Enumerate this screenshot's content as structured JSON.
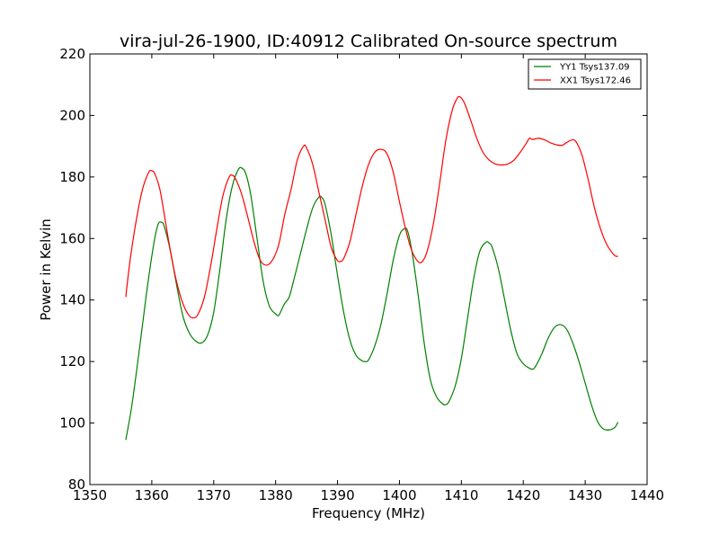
{
  "chart_data": {
    "type": "line",
    "title": "vira-jul-26-1900, ID:40912 Calibrated On-source spectrum",
    "xlabel": "Frequency (MHz)",
    "ylabel": "Power in Kelvin",
    "xlim": [
      1350,
      1440
    ],
    "ylim": [
      80,
      220
    ],
    "xticks": [
      1350,
      1360,
      1370,
      1380,
      1390,
      1400,
      1410,
      1420,
      1430,
      1440
    ],
    "yticks": [
      80,
      100,
      120,
      140,
      160,
      180,
      200,
      220
    ],
    "grid": false,
    "legend_position": "top-right",
    "series": [
      {
        "name": "YY1 Tsys137.09",
        "color": "#008000",
        "points": [
          [
            1355.8,
            94.5
          ],
          [
            1356.8,
            106
          ],
          [
            1358,
            124
          ],
          [
            1359.2,
            143
          ],
          [
            1360.3,
            158
          ],
          [
            1361,
            164.5
          ],
          [
            1361.5,
            165.3
          ],
          [
            1362,
            164
          ],
          [
            1363,
            156
          ],
          [
            1364,
            145
          ],
          [
            1365,
            135
          ],
          [
            1366,
            129.5
          ],
          [
            1367,
            126.8
          ],
          [
            1368,
            126
          ],
          [
            1369,
            128.5
          ],
          [
            1370,
            136
          ],
          [
            1371,
            150
          ],
          [
            1372,
            166
          ],
          [
            1373,
            177
          ],
          [
            1374,
            182.5
          ],
          [
            1374.6,
            182.8
          ],
          [
            1375.2,
            181
          ],
          [
            1376,
            174
          ],
          [
            1377,
            160
          ],
          [
            1378,
            146
          ],
          [
            1379,
            138
          ],
          [
            1380,
            135.5
          ],
          [
            1380.5,
            135
          ],
          [
            1381,
            137
          ],
          [
            1381.5,
            139
          ],
          [
            1382.2,
            141
          ],
          [
            1383,
            147
          ],
          [
            1384,
            155
          ],
          [
            1385,
            163
          ],
          [
            1386,
            170
          ],
          [
            1387,
            173.5
          ],
          [
            1387.5,
            173.2
          ],
          [
            1388,
            171
          ],
          [
            1389,
            161
          ],
          [
            1390,
            148
          ],
          [
            1391,
            136
          ],
          [
            1392,
            127
          ],
          [
            1393,
            122
          ],
          [
            1394,
            120.2
          ],
          [
            1394.5,
            120
          ],
          [
            1395,
            120.5
          ],
          [
            1396,
            125
          ],
          [
            1397,
            132
          ],
          [
            1398,
            142
          ],
          [
            1399,
            153
          ],
          [
            1400,
            161
          ],
          [
            1400.8,
            163.2
          ],
          [
            1401.3,
            162.5
          ],
          [
            1402,
            156
          ],
          [
            1403,
            142
          ],
          [
            1404,
            126
          ],
          [
            1405,
            114
          ],
          [
            1406,
            108.5
          ],
          [
            1407,
            106.2
          ],
          [
            1407.5,
            106
          ],
          [
            1408,
            107
          ],
          [
            1409,
            112
          ],
          [
            1410,
            121
          ],
          [
            1411,
            134
          ],
          [
            1412,
            147
          ],
          [
            1413,
            156
          ],
          [
            1414,
            158.8
          ],
          [
            1414.5,
            158.5
          ],
          [
            1415,
            157
          ],
          [
            1416,
            150
          ],
          [
            1417,
            140
          ],
          [
            1418,
            130
          ],
          [
            1419,
            122.5
          ],
          [
            1420,
            119.3
          ],
          [
            1421,
            117.8
          ],
          [
            1421.5,
            117.5
          ],
          [
            1422,
            118.5
          ],
          [
            1423,
            122.5
          ],
          [
            1424,
            127.5
          ],
          [
            1425,
            131
          ],
          [
            1426,
            132
          ],
          [
            1427,
            130.5
          ],
          [
            1428,
            126
          ],
          [
            1429,
            120
          ],
          [
            1430,
            113
          ],
          [
            1431,
            106
          ],
          [
            1432,
            100.5
          ],
          [
            1433,
            98
          ],
          [
            1434,
            97.8
          ],
          [
            1434.8,
            98.6
          ],
          [
            1435.3,
            100.3
          ]
        ]
      },
      {
        "name": "XX1 Tsys172.46",
        "color": "#ff0000",
        "points": [
          [
            1355.8,
            141
          ],
          [
            1356.5,
            153
          ],
          [
            1357.5,
            166
          ],
          [
            1358.5,
            176
          ],
          [
            1359.5,
            181.5
          ],
          [
            1360,
            182
          ],
          [
            1360.5,
            181
          ],
          [
            1361.3,
            176
          ],
          [
            1362,
            168
          ],
          [
            1363,
            156
          ],
          [
            1364,
            146
          ],
          [
            1365,
            139
          ],
          [
            1366,
            135
          ],
          [
            1366.8,
            134.2
          ],
          [
            1367.5,
            135.5
          ],
          [
            1368.5,
            141
          ],
          [
            1369.5,
            151
          ],
          [
            1370.5,
            163
          ],
          [
            1371.5,
            174
          ],
          [
            1372.5,
            180
          ],
          [
            1373,
            180.5
          ],
          [
            1373.5,
            179.5
          ],
          [
            1374.5,
            174.5
          ],
          [
            1375.5,
            167
          ],
          [
            1376.5,
            159
          ],
          [
            1377.5,
            153
          ],
          [
            1378.5,
            151.3
          ],
          [
            1379.5,
            153
          ],
          [
            1380.5,
            158
          ],
          [
            1381.5,
            168
          ],
          [
            1382.5,
            176
          ],
          [
            1383.5,
            185.5
          ],
          [
            1384.5,
            190
          ],
          [
            1385,
            189.5
          ],
          [
            1386,
            184
          ],
          [
            1387,
            175
          ],
          [
            1388,
            166
          ],
          [
            1389,
            157
          ],
          [
            1390,
            152.8
          ],
          [
            1390.5,
            152.6
          ],
          [
            1391,
            153.5
          ],
          [
            1392,
            159
          ],
          [
            1393,
            168
          ],
          [
            1394,
            177
          ],
          [
            1395,
            184
          ],
          [
            1396,
            188
          ],
          [
            1397,
            189
          ],
          [
            1398,
            187.5
          ],
          [
            1399,
            181.5
          ],
          [
            1400,
            172
          ],
          [
            1401,
            163
          ],
          [
            1402,
            156
          ],
          [
            1403,
            152.5
          ],
          [
            1403.7,
            152.5
          ],
          [
            1404.5,
            156
          ],
          [
            1405.5,
            165
          ],
          [
            1406.5,
            178
          ],
          [
            1407.5,
            192
          ],
          [
            1408.5,
            201.5
          ],
          [
            1409.3,
            205.5
          ],
          [
            1409.8,
            206
          ],
          [
            1410.5,
            204
          ],
          [
            1411.5,
            198.5
          ],
          [
            1412.5,
            192.5
          ],
          [
            1413.5,
            188
          ],
          [
            1414.5,
            185.5
          ],
          [
            1415.5,
            184.2
          ],
          [
            1416.5,
            183.9
          ],
          [
            1417.5,
            184.2
          ],
          [
            1418.5,
            185.5
          ],
          [
            1419.5,
            188
          ],
          [
            1420.5,
            191
          ],
          [
            1421,
            192.6
          ],
          [
            1421.5,
            192.2
          ],
          [
            1422.5,
            192.6
          ],
          [
            1423.5,
            192
          ],
          [
            1424.5,
            191
          ],
          [
            1425.5,
            190.4
          ],
          [
            1426.3,
            190.3
          ],
          [
            1427,
            191.2
          ],
          [
            1427.8,
            192
          ],
          [
            1428.5,
            191.5
          ],
          [
            1429.5,
            187
          ],
          [
            1430.5,
            179
          ],
          [
            1431.5,
            170
          ],
          [
            1432.5,
            163
          ],
          [
            1433.5,
            158
          ],
          [
            1434.5,
            155
          ],
          [
            1435,
            154.2
          ],
          [
            1435.3,
            154.3
          ]
        ]
      }
    ]
  }
}
